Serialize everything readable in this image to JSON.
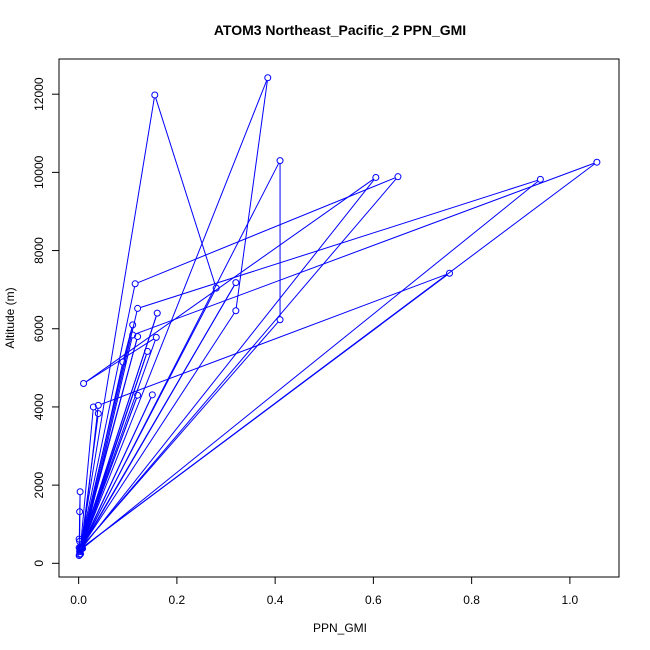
{
  "chart_data": {
    "type": "line",
    "title": "ATOM3 Northeast_Pacific_2 PPN_GMI",
    "xlabel": "PPN_GMI",
    "ylabel": "Altitude (m)",
    "xlim": [
      -0.04,
      1.1
    ],
    "ylim": [
      -350,
      12900
    ],
    "xticks": [
      "0.0",
      "0.2",
      "0.4",
      "0.6",
      "0.8",
      "1.0"
    ],
    "yticks": [
      "0",
      "2000",
      "4000",
      "6000",
      "8000",
      "10000",
      "12000"
    ],
    "grid": false,
    "legend": "none",
    "line_color": "#0000ff",
    "marker": "open-circle",
    "series": [
      {
        "x": [
          0.001,
          0.002,
          0.003,
          0.002,
          0.001,
          0.004,
          0.002,
          0.001,
          0.002,
          0.003,
          0.03,
          0.04,
          0.004,
          0.12,
          0.005,
          0.15,
          0.005,
          0.12,
          0.003,
          0.14,
          0.006,
          0.09,
          0.11,
          0.004,
          0.16,
          0.003,
          0.155,
          0.28,
          0.005,
          0.32,
          0.004,
          0.385,
          0.32,
          0.003,
          0.005,
          0.41,
          0.41,
          0.003,
          0.115,
          0.65,
          0.005,
          0.158,
          0.01,
          0.605,
          0.006,
          0.12,
          0.94,
          0.008,
          0.11,
          1.055,
          0.007,
          0.04,
          0.755,
          0.003
        ],
        "y": [
          200,
          1320,
          1830,
          560,
          620,
          240,
          230,
          400,
          300,
          320,
          4000,
          3830,
          350,
          4300,
          380,
          4310,
          400,
          5800,
          380,
          5420,
          400,
          5150,
          6100,
          420,
          6400,
          360,
          11980,
          7040,
          400,
          7180,
          350,
          12420,
          6460,
          360,
          380,
          10300,
          6230,
          380,
          7150,
          9890,
          400,
          5780,
          4600,
          9870,
          380,
          6520,
          9820,
          380,
          5840,
          10260,
          400,
          4040,
          7420,
          360
        ]
      }
    ]
  }
}
